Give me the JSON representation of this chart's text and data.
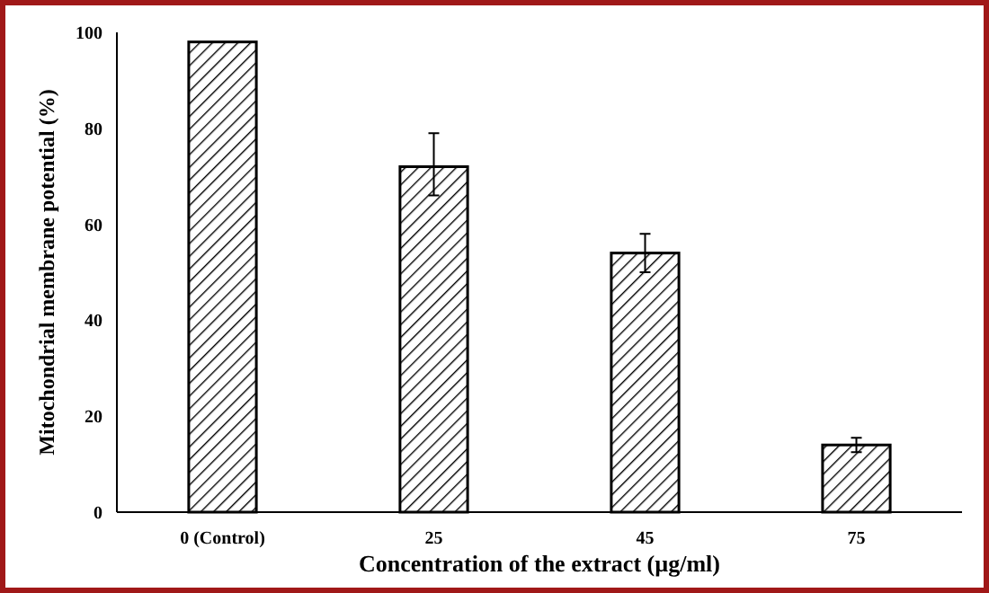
{
  "chart_data": {
    "type": "bar",
    "xlabel": "Concentration  of the extract (µg/ml)",
    "ylabel": "Mitochondrial  membrane  potential (%)",
    "categories": [
      "0 (Control)",
      "25",
      "45",
      "75"
    ],
    "color": "#000000",
    "values": [
      98,
      72,
      54,
      14
    ],
    "errors": [
      null,
      [
        66,
        79
      ],
      [
        50,
        58
      ],
      [
        12.5,
        15.5
      ]
    ],
    "ylim": [
      0,
      100
    ],
    "yticks": [
      0,
      20,
      40,
      60,
      80,
      100
    ],
    "grid": false
  }
}
